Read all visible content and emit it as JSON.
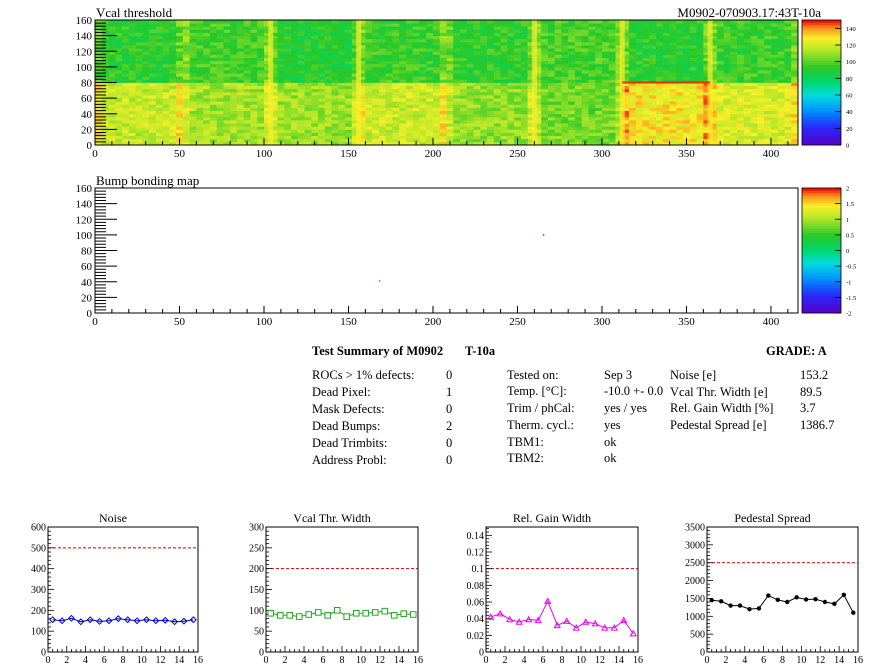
{
  "chart_data": [
    {
      "type": "heatmap",
      "title": "Vcal threshold",
      "corner_label": "M0902-070903.17:43T-10a",
      "xlim": [
        0,
        416
      ],
      "ylim": [
        0,
        160
      ],
      "x_ticks": [
        "0",
        "50",
        "100",
        "150",
        "200",
        "250",
        "300",
        "350",
        "400"
      ],
      "y_ticks": [
        "0",
        "20",
        "40",
        "60",
        "80",
        "100",
        "120",
        "140",
        "160"
      ],
      "colorbar": {
        "min": 0,
        "max": 150,
        "ticks": [
          "0",
          "20",
          "40",
          "60",
          "80",
          "100",
          "120",
          "140"
        ]
      },
      "roc_blocks_top": [
        92,
        96,
        90,
        95,
        93,
        97,
        92,
        95
      ],
      "roc_blocks_bottom": [
        118,
        112,
        110,
        119,
        109,
        104,
        128,
        122
      ],
      "hot_columns": [
        104,
        156,
        260,
        312,
        364
      ]
    },
    {
      "type": "heatmap",
      "title": "Bump bonding map",
      "xlim": [
        0,
        416
      ],
      "ylim": [
        0,
        160
      ],
      "x_ticks": [
        "0",
        "50",
        "100",
        "150",
        "200",
        "250",
        "300",
        "350",
        "400"
      ],
      "y_ticks": [
        "0",
        "20",
        "40",
        "60",
        "80",
        "100",
        "120",
        "140",
        "160"
      ],
      "colorbar": {
        "min": -2,
        "max": 2,
        "ticks": [
          "-2",
          "-1.5",
          "-1",
          "-0.5",
          "0",
          "0.5",
          "1",
          "1.5",
          "2"
        ]
      },
      "points": [
        {
          "x": 168,
          "y": 42,
          "color": "#20c020"
        },
        {
          "x": 265,
          "y": 101,
          "color": "#308030"
        }
      ]
    },
    {
      "type": "line",
      "title": "Noise",
      "x": [
        0,
        1,
        2,
        3,
        4,
        5,
        6,
        7,
        8,
        9,
        10,
        11,
        12,
        13,
        14,
        15
      ],
      "values": [
        155,
        150,
        162,
        145,
        155,
        147,
        150,
        160,
        155,
        150,
        155,
        150,
        152,
        145,
        148,
        155
      ],
      "ylim": [
        0,
        600
      ],
      "xlim": [
        0,
        16
      ],
      "y_ticks": [
        "0",
        "100",
        "200",
        "300",
        "400",
        "500",
        "600"
      ],
      "x_ticks": [
        "0",
        "2",
        "4",
        "6",
        "8",
        "10",
        "12",
        "14",
        "16"
      ],
      "limit": 500,
      "color": "#0000cc",
      "marker": "diamond"
    },
    {
      "type": "line",
      "title": "Vcal Thr. Width",
      "x": [
        0,
        1,
        2,
        3,
        4,
        5,
        6,
        7,
        8,
        9,
        10,
        11,
        12,
        13,
        14,
        15
      ],
      "values": [
        93,
        88,
        88,
        85,
        90,
        95,
        88,
        100,
        85,
        93,
        93,
        95,
        98,
        88,
        92,
        90
      ],
      "ylim": [
        0,
        300
      ],
      "xlim": [
        0,
        16
      ],
      "y_ticks": [
        "0",
        "50",
        "100",
        "150",
        "200",
        "250",
        "300"
      ],
      "x_ticks": [
        "0",
        "2",
        "4",
        "6",
        "8",
        "10",
        "12",
        "14",
        "16"
      ],
      "limit": 200,
      "color": "#22aa22",
      "marker": "square"
    },
    {
      "type": "line",
      "title": "Rel. Gain Width",
      "x": [
        0,
        1,
        2,
        3,
        4,
        5,
        6,
        7,
        8,
        9,
        10,
        11,
        12,
        13,
        14,
        15
      ],
      "values": [
        0.042,
        0.046,
        0.039,
        0.036,
        0.039,
        0.038,
        0.061,
        0.032,
        0.037,
        0.029,
        0.036,
        0.034,
        0.029,
        0.029,
        0.038,
        0.022
      ],
      "ylim": [
        0,
        0.15
      ],
      "xlim": [
        0,
        16
      ],
      "y_ticks": [
        "0",
        "0.02",
        "0.04",
        "0.06",
        "0.08",
        "0.1",
        "0.12",
        "0.14"
      ],
      "x_ticks": [
        "0",
        "2",
        "4",
        "6",
        "8",
        "10",
        "12",
        "14",
        "16"
      ],
      "limit": 0.1,
      "color": "#ee00ee",
      "marker": "triangle"
    },
    {
      "type": "line",
      "title": "Pedestal Spread",
      "x": [
        0,
        1,
        2,
        3,
        4,
        5,
        6,
        7,
        8,
        9,
        10,
        11,
        12,
        13,
        14,
        15
      ],
      "values": [
        1450,
        1420,
        1300,
        1300,
        1200,
        1220,
        1580,
        1460,
        1400,
        1530,
        1470,
        1480,
        1400,
        1350,
        1600,
        1100
      ],
      "ylim": [
        0,
        3500
      ],
      "xlim": [
        0,
        16
      ],
      "y_ticks": [
        "0",
        "500",
        "1000",
        "1500",
        "2000",
        "2500",
        "3000",
        "3500"
      ],
      "x_ticks": [
        "0",
        "2",
        "4",
        "6",
        "8",
        "10",
        "12",
        "14",
        "16"
      ],
      "limit": 2500,
      "color": "#000000",
      "marker": "circle"
    }
  ],
  "summary": {
    "heading": "Test Summary of M0902",
    "temp_tag": "T-10a",
    "grade_label": "GRADE:  A",
    "defects": [
      {
        "label": "ROCs > 1% defects:",
        "value": "0"
      },
      {
        "label": "Dead Pixel:",
        "value": "1"
      },
      {
        "label": "Mask Defects:",
        "value": "0"
      },
      {
        "label": "Dead Bumps:",
        "value": "2"
      },
      {
        "label": "Dead Trimbits:",
        "value": "0"
      },
      {
        "label": "Address Probl:",
        "value": "0"
      }
    ],
    "conditions": [
      {
        "label": "Tested on:",
        "value": "Sep 3"
      },
      {
        "label": "Temp. [°C]:",
        "value": "-10.0 +- 0.0"
      },
      {
        "label": "Trim / phCal:",
        "value": "yes / yes"
      },
      {
        "label": "Therm. cycl.:",
        "value": "yes"
      },
      {
        "label": "TBM1:",
        "value": "ok"
      },
      {
        "label": "TBM2:",
        "value": "ok"
      }
    ],
    "results": [
      {
        "label": "Noise [e]",
        "value": "153.2"
      },
      {
        "label": "Vcal Thr. Width [e]",
        "value": "89.5"
      },
      {
        "label": "Rel. Gain Width [%]",
        "value": "3.7"
      },
      {
        "label": "Pedestal Spread [e]",
        "value": "1386.7"
      }
    ]
  },
  "colors": {
    "limit_line": "#cc0000",
    "heat_low": "#5a00c8",
    "heat_high": "#e80000"
  }
}
